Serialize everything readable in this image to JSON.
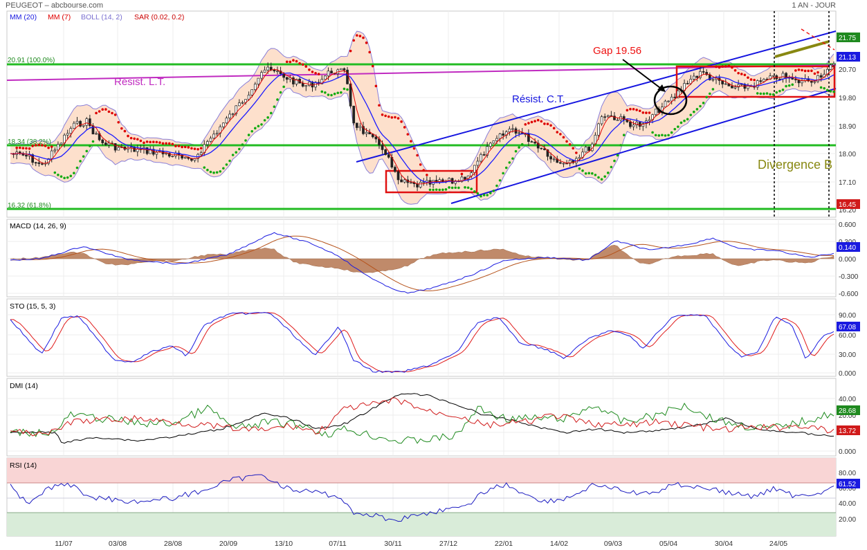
{
  "header": {
    "left": "PEUGEOT – abcbourse.com",
    "right": "1 AN - JOUR"
  },
  "colors": {
    "mm20": "#1a1aff",
    "mm7": "#e00000",
    "boll": "#8a7fd8",
    "boll_fill": "#fde0cc",
    "sar": "#dd0000",
    "sar_low": "#11aa11",
    "fib": "#22bb22",
    "resist_lt": "#c02ac0",
    "channel": "#1515e0",
    "annot": "#ee1111",
    "olive": "#888811",
    "macd": "#1a1ae0",
    "signal": "#b5521a",
    "hist": "#c08a6a",
    "sto_k": "#1a1ae0",
    "sto_d": "#e01a1a",
    "dmi_plus": "#1e8a1e",
    "dmi_minus": "#d01a1a",
    "adx": "#000000",
    "rsi": "#1a1ac0",
    "rsi_over": "#f9d5d5",
    "rsi_under": "#d9ecd9"
  },
  "panels": {
    "price": {
      "legend": [
        {
          "text": "MM (20)",
          "color": "#1a1ae0"
        },
        {
          "text": "MM (7)",
          "color": "#e00000"
        },
        {
          "text": "BOLL (14, 2)",
          "color": "#7a6fd0"
        },
        {
          "text": "SAR (0.02, 0.2)",
          "color": "#cc0000"
        }
      ],
      "fib_labels": [
        "20.91  (100.0%)",
        "18.34  (38.2%)",
        "16.32  (61.8%)"
      ],
      "annotations": {
        "resist_lt": "Résist. L.T.",
        "resist_ct": "Résist. C.T.",
        "gap": "Gap 19.56",
        "divergence": "Divergence B"
      },
      "axis_ticks": [
        "20.70",
        "19.80",
        "18.90",
        "18.00",
        "17.10",
        "16.20"
      ],
      "badges": [
        {
          "text": "21.75",
          "bg": "#1f8a1f"
        },
        {
          "text": "21.13",
          "bg": "#1a1ae0"
        },
        {
          "text": "16.45",
          "bg": "#d01a1a"
        }
      ]
    },
    "macd": {
      "title": "MACD (14, 26, 9)",
      "ticks": [
        "0.600",
        "0.300",
        "0.000",
        "-0.300",
        "-0.600"
      ],
      "badge": "0.140"
    },
    "sto": {
      "title": "STO (15, 5, 3)",
      "ticks": [
        "90.00",
        "60.00",
        "30.00",
        "0.000"
      ],
      "badge": "67.08"
    },
    "dmi": {
      "title": "DMI (14)",
      "ticks": [
        "40.00",
        "20.00",
        "0.000"
      ],
      "badges": [
        "28.68",
        "13.72"
      ]
    },
    "rsi": {
      "title": "RSI (14)",
      "ticks": [
        "80.00",
        "60.00",
        "40.00",
        "20.00"
      ],
      "badge": "61.52"
    }
  },
  "x_labels": [
    "11/07",
    "03/08",
    "28/08",
    "20/09",
    "13/10",
    "07/11",
    "30/11",
    "27/12",
    "22/01",
    "14/02",
    "09/03",
    "05/04",
    "30/04",
    "24/05"
  ],
  "chart_data": [
    {
      "type": "line",
      "title": "PEUGEOT",
      "x": [
        "11/07",
        "03/08",
        "28/08",
        "20/09",
        "13/10",
        "07/11",
        "30/11",
        "27/12",
        "22/01",
        "14/02",
        "09/03",
        "05/04",
        "30/04",
        "24/05"
      ],
      "series": [
        {
          "name": "MM (20)",
          "values": [
            17.9,
            18.2,
            18.1,
            18.5,
            20.2,
            20.4,
            18.1,
            17.1,
            18.2,
            18.5,
            19.0,
            19.8,
            20.3,
            20.5
          ]
        }
      ],
      "levels": [
        20.91,
        18.34,
        16.32
      ],
      "ylim": [
        16.0,
        21.9
      ]
    },
    {
      "type": "line",
      "title": "MACD (14, 26, 9)",
      "x": [
        "11/07",
        "03/08",
        "28/08",
        "20/09",
        "13/10",
        "07/11",
        "30/11",
        "27/12",
        "22/01",
        "14/02",
        "09/03",
        "05/04",
        "30/04",
        "24/05"
      ],
      "series": [
        {
          "values": [
            0.05,
            0.1,
            -0.05,
            0.0,
            0.33,
            0.1,
            -0.42,
            -0.45,
            -0.1,
            0.05,
            0.0,
            0.25,
            0.3,
            0.14
          ]
        }
      ],
      "ylim": [
        -0.65,
        0.65
      ]
    },
    {
      "type": "line",
      "title": "STO (15, 5, 3)",
      "x": [
        "11/07",
        "03/08",
        "28/08",
        "20/09",
        "13/10",
        "07/11",
        "30/11",
        "27/12",
        "22/01",
        "14/02",
        "09/03",
        "05/04",
        "30/04",
        "24/05"
      ],
      "series": [
        {
          "values": [
            80,
            20,
            40,
            95,
            95,
            25,
            2,
            30,
            90,
            20,
            80,
            90,
            25,
            67.08
          ]
        }
      ],
      "ylim": [
        0,
        100
      ]
    },
    {
      "type": "line",
      "title": "DMI (14)",
      "x": [
        "11/07",
        "03/08",
        "28/08",
        "20/09",
        "13/10",
        "07/11",
        "30/11",
        "27/12",
        "22/01",
        "14/02",
        "09/03",
        "05/04",
        "30/04",
        "24/05"
      ],
      "series": [
        {
          "values": [
            28,
            26,
            22,
            33,
            25,
            12,
            10,
            14,
            27,
            24,
            38,
            32,
            25,
            28.68
          ]
        }
      ],
      "ylim": [
        0,
        50
      ]
    },
    {
      "type": "line",
      "title": "RSI (14)",
      "x": [
        "11/07",
        "03/08",
        "28/08",
        "20/09",
        "13/10",
        "07/11",
        "30/11",
        "27/12",
        "22/01",
        "14/02",
        "09/03",
        "05/04",
        "30/04",
        "24/05"
      ],
      "series": [
        {
          "values": [
            70,
            52,
            48,
            60,
            78,
            55,
            22,
            32,
            68,
            52,
            65,
            70,
            55,
            61.52
          ]
        }
      ],
      "ylim": [
        0,
        100
      ]
    }
  ]
}
